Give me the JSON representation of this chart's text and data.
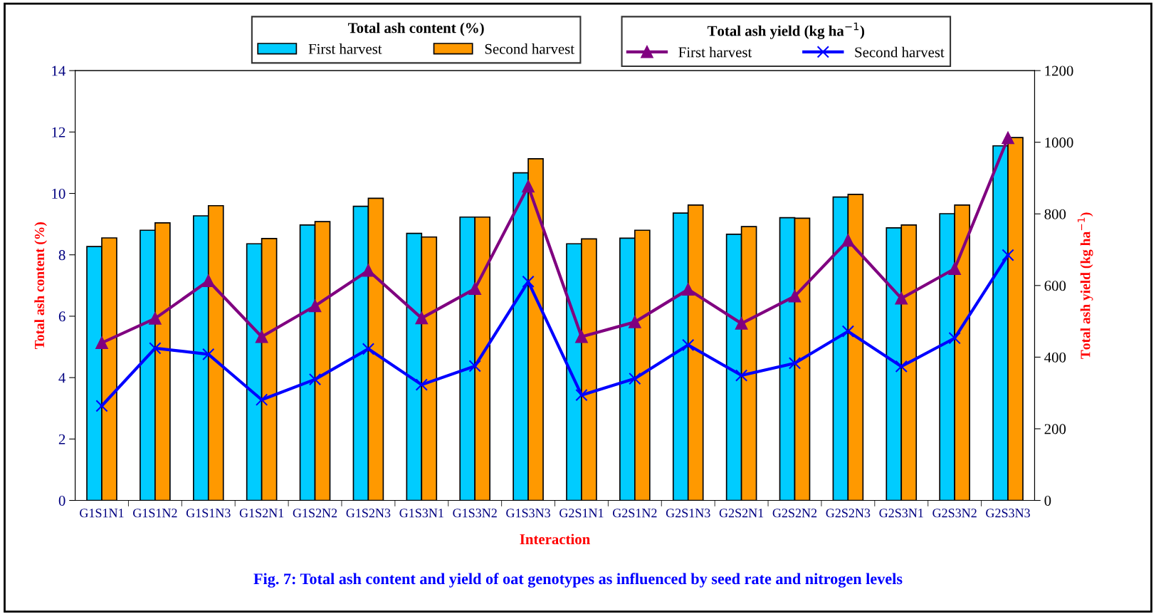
{
  "chart_data": {
    "type": "bar",
    "categories": [
      "G1S1N1",
      "G1S1N2",
      "G1S1N3",
      "G1S2N1",
      "G1S2N2",
      "G1S2N3",
      "G1S3N1",
      "G1S3N2",
      "G1S3N3",
      "G2S1N1",
      "G2S1N2",
      "G2S1N3",
      "G2S2N1",
      "G2S2N2",
      "G2S2N3",
      "G2S3N1",
      "G2S3N2",
      "G2S3N3"
    ],
    "series": [
      {
        "name": "First harvest",
        "color": "#00ccff",
        "values": [
          8.27,
          8.8,
          9.27,
          8.36,
          8.97,
          9.58,
          8.7,
          9.23,
          10.67,
          8.36,
          8.54,
          9.36,
          8.67,
          9.21,
          9.88,
          8.88,
          9.34,
          11.55
        ]
      },
      {
        "name": "Second harvest",
        "color": "#ff9900",
        "values": [
          8.55,
          9.04,
          9.6,
          8.53,
          9.08,
          9.84,
          8.58,
          9.23,
          11.13,
          8.52,
          8.8,
          9.62,
          8.92,
          9.19,
          9.97,
          8.97,
          9.62,
          11.82
        ]
      },
      {
        "name": "First harvest",
        "type": "line",
        "axis": "y2",
        "marker": "triangle",
        "color": "#800080",
        "values": [
          440,
          508,
          613,
          457,
          543,
          642,
          509,
          591,
          877,
          457,
          498,
          589,
          494,
          570,
          726,
          564,
          647,
          1012
        ]
      },
      {
        "name": "Second harvest",
        "type": "line",
        "axis": "y2",
        "marker": "cross",
        "color": "#0000ff",
        "values": [
          264,
          425,
          408,
          281,
          338,
          423,
          323,
          375,
          611,
          294,
          340,
          434,
          349,
          383,
          472,
          374,
          453,
          685
        ]
      }
    ],
    "xlabel": "Interaction",
    "ylabel": "Total ash content (%)",
    "y2label": "Total ash yield (kg ha$^{−1}$)",
    "ylim": [
      0,
      14
    ],
    "yticks": [
      0,
      2,
      4,
      6,
      8,
      10,
      12,
      14
    ],
    "y2lim": [
      0,
      1200
    ],
    "y2ticks": [
      0,
      200,
      400,
      600,
      800,
      1000,
      1200
    ],
    "legend": "top",
    "grid": false,
    "annotations": [
      "Fig. 7: Total ash content and yield of oat genotypes as influenced by seed rate and nitrogen levels"
    ]
  }
}
